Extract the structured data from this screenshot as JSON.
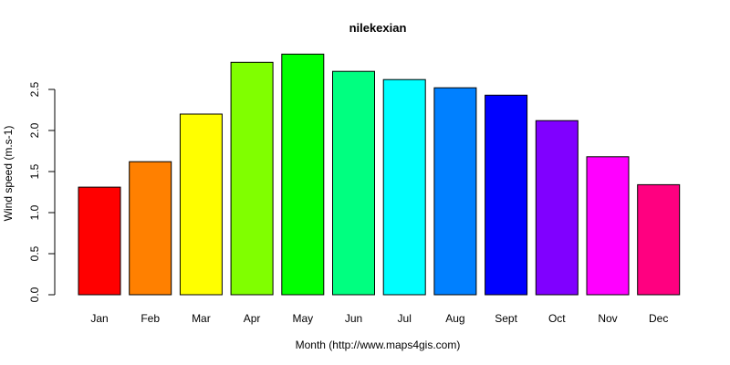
{
  "chart_data": {
    "type": "bar",
    "title": "nilekexian",
    "xlabel": "Month (http://www.maps4gis.com)",
    "ylabel": "Wind speed (m.s-1)",
    "categories": [
      "Jan",
      "Feb",
      "Mar",
      "Apr",
      "May",
      "Jun",
      "Jul",
      "Aug",
      "Sept",
      "Oct",
      "Nov",
      "Dec"
    ],
    "values": [
      1.31,
      1.62,
      2.2,
      2.83,
      2.93,
      2.72,
      2.62,
      2.52,
      2.43,
      2.12,
      1.68,
      1.34
    ],
    "colors": [
      "#FF0000",
      "#FF8000",
      "#FFFF00",
      "#80FF00",
      "#00FF00",
      "#00FF80",
      "#00FFFF",
      "#0080FF",
      "#0000FF",
      "#8000FF",
      "#FF00FF",
      "#FF0080"
    ],
    "yticks": [
      "0.0",
      "0.5",
      "1.0",
      "1.5",
      "2.0",
      "2.5"
    ],
    "ylim": [
      0,
      2.93
    ],
    "grid": false,
    "legend": "none"
  }
}
